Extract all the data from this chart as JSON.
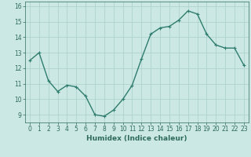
{
  "x": [
    0,
    1,
    2,
    3,
    4,
    5,
    6,
    7,
    8,
    9,
    10,
    11,
    12,
    13,
    14,
    15,
    16,
    17,
    18,
    19,
    20,
    21,
    22,
    23
  ],
  "y": [
    12.5,
    13.0,
    11.2,
    10.5,
    10.9,
    10.8,
    10.2,
    9.0,
    8.9,
    9.3,
    10.0,
    10.9,
    12.6,
    14.2,
    14.6,
    14.7,
    15.1,
    15.7,
    15.5,
    14.2,
    13.5,
    13.3,
    13.3,
    12.2
  ],
  "line_color": "#2e7d6e",
  "marker": "+",
  "marker_size": 3,
  "line_width": 1.0,
  "bg_color": "#cce8e4",
  "grid_color": "#aacfca",
  "xlabel": "Humidex (Indice chaleur)",
  "xlim": [
    -0.5,
    23.5
  ],
  "ylim": [
    8.5,
    16.3
  ],
  "yticks": [
    9,
    10,
    11,
    12,
    13,
    14,
    15,
    16
  ],
  "xticks": [
    0,
    1,
    2,
    3,
    4,
    5,
    6,
    7,
    8,
    9,
    10,
    11,
    12,
    13,
    14,
    15,
    16,
    17,
    18,
    19,
    20,
    21,
    22,
    23
  ],
  "tick_color": "#2e6b5e",
  "label_color": "#2e6b5e",
  "xlabel_fontsize": 6.5,
  "tick_fontsize": 5.5
}
